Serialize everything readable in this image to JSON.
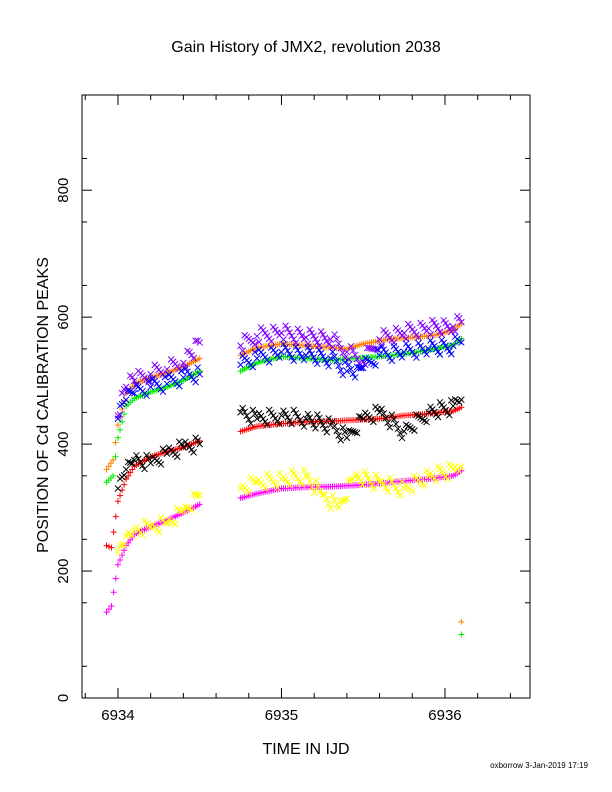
{
  "chart_data": {
    "type": "scatter",
    "title": "Gain History of JMX2, revolution 2038",
    "xlabel": "TIME IN IJD",
    "ylabel": "POSITION OF Cd CALIBRATION PEAKS",
    "xlim": [
      6933.78,
      6936.52
    ],
    "ylim": [
      0,
      950
    ],
    "xticks": [
      6934,
      6935,
      6936
    ],
    "yticks": [
      0,
      200,
      400,
      600,
      800
    ],
    "x_tick_labels": [
      "6934",
      "6935",
      "6936"
    ],
    "y_tick_labels": [
      "0",
      "200",
      "400",
      "600",
      "800"
    ],
    "grid": false,
    "footer": "oxborrow  3-Jan-2019 17:19",
    "series": [
      {
        "color": "#ff8000",
        "marker": "plus",
        "segments": [
          {
            "x": [
              6933.93,
              6933.97,
              6934.0,
              6934.05,
              6934.1,
              6934.2,
              6934.3,
              6934.4,
              6934.5
            ],
            "y": [
              360,
              375,
              430,
              480,
              495,
              505,
              512,
              522,
              535
            ]
          },
          {
            "x": [
              6934.75,
              6934.85,
              6935.0,
              6935.15,
              6935.3,
              6935.4,
              6935.5,
              6935.65,
              6935.8,
              6935.95,
              6936.05,
              6936.1
            ],
            "y": [
              540,
              552,
              558,
              555,
              552,
              550,
              558,
              565,
              568,
              572,
              580,
              590
            ]
          }
        ],
        "outliers": {
          "x": [
            6936.1
          ],
          "y": [
            120
          ]
        }
      },
      {
        "color": "#00ee00",
        "marker": "plus",
        "segments": [
          {
            "x": [
              6933.93,
              6933.97,
              6934.0,
              6934.05,
              6934.1,
              6934.2,
              6934.3,
              6934.4,
              6934.5
            ],
            "y": [
              340,
              350,
              410,
              460,
              472,
              482,
              490,
              500,
              515
            ]
          },
          {
            "x": [
              6934.75,
              6934.85,
              6935.0,
              6935.15,
              6935.3,
              6935.45,
              6935.6,
              6935.75,
              6935.9,
              6936.05,
              6936.1
            ],
            "y": [
              515,
              528,
              538,
              535,
              532,
              535,
              538,
              542,
              548,
              556,
              566
            ]
          }
        ],
        "outliers": {
          "x": [
            6936.1
          ],
          "y": [
            100
          ]
        }
      },
      {
        "color": "#ff0000",
        "marker": "plus",
        "segments": [
          {
            "x": [
              6933.93,
              6933.96,
              6934.0,
              6934.05,
              6934.1,
              6934.2,
              6934.3,
              6934.4,
              6934.5
            ],
            "y": [
              240,
              237,
              310,
              345,
              365,
              380,
              388,
              395,
              405
            ]
          },
          {
            "x": [
              6934.75,
              6934.85,
              6935.0,
              6935.15,
              6935.3,
              6935.45,
              6935.6,
              6935.75,
              6935.9,
              6936.05,
              6936.1
            ],
            "y": [
              420,
              428,
              432,
              435,
              436,
              438,
              440,
              445,
              448,
              452,
              458
            ]
          }
        ]
      },
      {
        "color": "#ff00ff",
        "marker": "plus",
        "segments": [
          {
            "x": [
              6933.93,
              6933.96,
              6934.0,
              6934.05,
              6934.1,
              6934.2,
              6934.3,
              6934.4,
              6934.5
            ],
            "y": [
              135,
              145,
              210,
              240,
              258,
              270,
              280,
              292,
              305
            ]
          },
          {
            "x": [
              6934.75,
              6934.85,
              6935.0,
              6935.15,
              6935.3,
              6935.45,
              6935.6,
              6935.75,
              6935.9,
              6936.05,
              6936.1
            ],
            "y": [
              315,
              322,
              330,
              332,
              333,
              335,
              338,
              342,
              345,
              350,
              358
            ]
          }
        ]
      },
      {
        "color": "#8000ff",
        "marker": "cross",
        "segments": [
          {
            "x": [
              6934.0,
              6934.05,
              6934.1,
              6934.2,
              6934.3,
              6934.4,
              6934.45,
              6934.5
            ],
            "y": [
              445,
              490,
              500,
              510,
              518,
              528,
              540,
              560
            ]
          },
          {
            "x": [
              6934.75,
              6934.85,
              6935.0,
              6935.15,
              6935.3,
              6935.4,
              6935.5,
              6935.6,
              6935.75,
              6935.9,
              6936.05,
              6936.1
            ],
            "y": [
              555,
              570,
              575,
              568,
              565,
              545,
              530,
              565,
              575,
              582,
              585,
              592
            ]
          }
        ]
      },
      {
        "color": "#0000ff",
        "marker": "cross",
        "segments": [
          {
            "x": [
              6934.0,
              6934.05,
              6934.1,
              6934.2,
              6934.3,
              6934.4,
              6934.5
            ],
            "y": [
              440,
              470,
              480,
              490,
              495,
              505,
              510
            ]
          },
          {
            "x": [
              6934.75,
              6934.85,
              6935.0,
              6935.15,
              6935.3,
              6935.4,
              6935.45,
              6935.5,
              6935.6,
              6935.75,
              6935.9,
              6936.05,
              6936.1
            ],
            "y": [
              525,
              535,
              545,
              540,
              535,
              515,
              505,
              520,
              540,
              545,
              550,
              555,
              560
            ]
          }
        ]
      },
      {
        "color": "#000000",
        "marker": "cross",
        "segments": [
          {
            "x": [
              6934.0,
              6934.05,
              6934.1,
              6934.2,
              6934.3,
              6934.4,
              6934.5
            ],
            "y": [
              330,
              360,
              375,
              370,
              385,
              395,
              400
            ]
          },
          {
            "x": [
              6934.75,
              6934.85,
              6935.0,
              6935.15,
              6935.3,
              6935.4,
              6935.5,
              6935.6,
              6935.75,
              6935.9,
              6936.05,
              6936.1
            ],
            "y": [
              450,
              440,
              445,
              440,
              430,
              410,
              440,
              450,
              420,
              450,
              460,
              470
            ]
          }
        ]
      },
      {
        "color": "#ffff00",
        "marker": "cross",
        "segments": [
          {
            "x": [
              6934.0,
              6934.05,
              6934.1,
              6934.2,
              6934.3,
              6934.4,
              6934.5
            ],
            "y": [
              230,
              255,
              265,
              270,
              275,
              295,
              320
            ]
          },
          {
            "x": [
              6934.75,
              6934.85,
              6935.0,
              6935.15,
              6935.25,
              6935.35,
              6935.45,
              6935.6,
              6935.75,
              6935.9,
              6936.05,
              6936.1
            ],
            "y": [
              330,
              340,
              345,
              350,
              320,
              300,
              350,
              340,
              330,
              350,
              360,
              365
            ]
          }
        ]
      }
    ]
  }
}
